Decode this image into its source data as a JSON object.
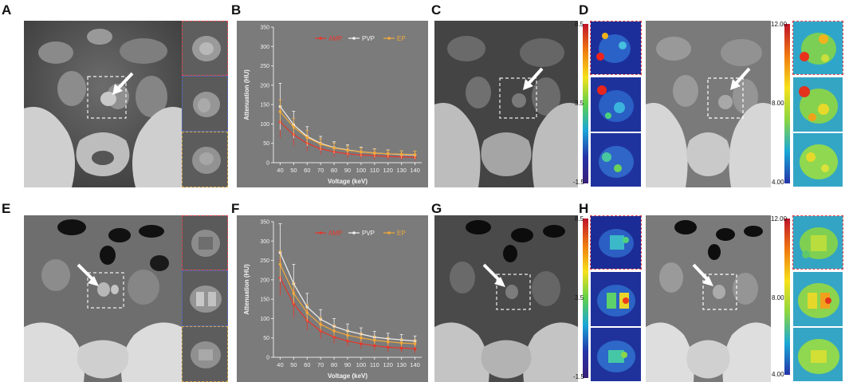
{
  "panels": {
    "A": "A",
    "B": "B",
    "C": "C",
    "D": "D",
    "E": "E",
    "F": "F",
    "G": "G",
    "H": "H"
  },
  "colors": {
    "ap": "#e8362b",
    "pvp": "#f2f2f2",
    "ep": "#f0a93a",
    "inset_ap_border": "#e0444a",
    "inset_pvp_border": "#4a64c8",
    "inset_ep_border": "#d9a64a",
    "chart_bg": "#7b7b7b"
  },
  "colorbars": {
    "top_iodine": {
      "max": "8.5",
      "mid": "3.5",
      "min": "-1.5"
    },
    "top_zeff": {
      "max": "12.00",
      "mid": "8.00",
      "min": "4.00"
    },
    "bottom_iodine": {
      "max": "8.5",
      "mid": "3.5",
      "min": "-1.5"
    },
    "bottom_zeff": {
      "max": "12.00",
      "mid": "8.00",
      "min": "4.00"
    }
  },
  "chart_data": [
    {
      "type": "line",
      "panel": "B",
      "xlabel": "Voltage (keV)",
      "ylabel": "Attenuation (HU)",
      "x": [
        40,
        50,
        60,
        70,
        80,
        90,
        100,
        110,
        120,
        130,
        140
      ],
      "xlim": [
        35,
        145
      ],
      "ylim": [
        0,
        350
      ],
      "yticks": [
        0,
        50,
        100,
        150,
        200,
        250,
        300,
        350
      ],
      "legend_position": "top-right",
      "series": [
        {
          "name": "AP",
          "color": "#e8362b",
          "values": [
            105,
            72,
            50,
            36,
            28,
            23,
            20,
            18,
            16,
            15,
            14
          ],
          "errors": [
            40,
            28,
            20,
            15,
            12,
            11,
            10,
            10,
            9,
            9,
            9
          ]
        },
        {
          "name": "PVP",
          "color": "#f2f2f2",
          "values": [
            145,
            98,
            68,
            50,
            39,
            33,
            28,
            25,
            23,
            21,
            20
          ],
          "errors": [
            60,
            35,
            25,
            18,
            15,
            13,
            12,
            11,
            10,
            10,
            10
          ]
        },
        {
          "name": "EP",
          "color": "#f0a93a",
          "values": [
            132,
            92,
            65,
            48,
            38,
            32,
            28,
            25,
            23,
            22,
            21
          ],
          "errors": [
            30,
            22,
            18,
            14,
            12,
            11,
            10,
            10,
            9,
            9,
            9
          ]
        }
      ]
    },
    {
      "type": "line",
      "panel": "F",
      "xlabel": "Voltage (keV)",
      "ylabel": "Attenuation (HU)",
      "x": [
        40,
        50,
        60,
        70,
        80,
        90,
        100,
        110,
        120,
        130,
        140
      ],
      "xlim": [
        35,
        145
      ],
      "ylim": [
        0,
        350
      ],
      "yticks": [
        0,
        50,
        100,
        150,
        200,
        250,
        300,
        350
      ],
      "legend_position": "top-right",
      "series": [
        {
          "name": "AP",
          "color": "#e8362b",
          "values": [
            205,
            138,
            95,
            68,
            52,
            42,
            35,
            30,
            26,
            24,
            22
          ],
          "errors": [
            45,
            35,
            25,
            20,
            16,
            14,
            13,
            12,
            12,
            11,
            11
          ]
        },
        {
          "name": "PVP",
          "color": "#f2f2f2",
          "values": [
            270,
            190,
            130,
            98,
            80,
            68,
            60,
            52,
            48,
            45,
            42
          ],
          "errors": [
            75,
            50,
            35,
            25,
            20,
            18,
            16,
            15,
            14,
            14,
            13
          ]
        },
        {
          "name": "EP",
          "color": "#f0a93a",
          "values": [
            240,
            165,
            115,
            85,
            68,
            57,
            50,
            44,
            40,
            37,
            35
          ],
          "errors": [
            35,
            28,
            22,
            18,
            15,
            13,
            12,
            11,
            11,
            10,
            10
          ]
        }
      ]
    }
  ]
}
